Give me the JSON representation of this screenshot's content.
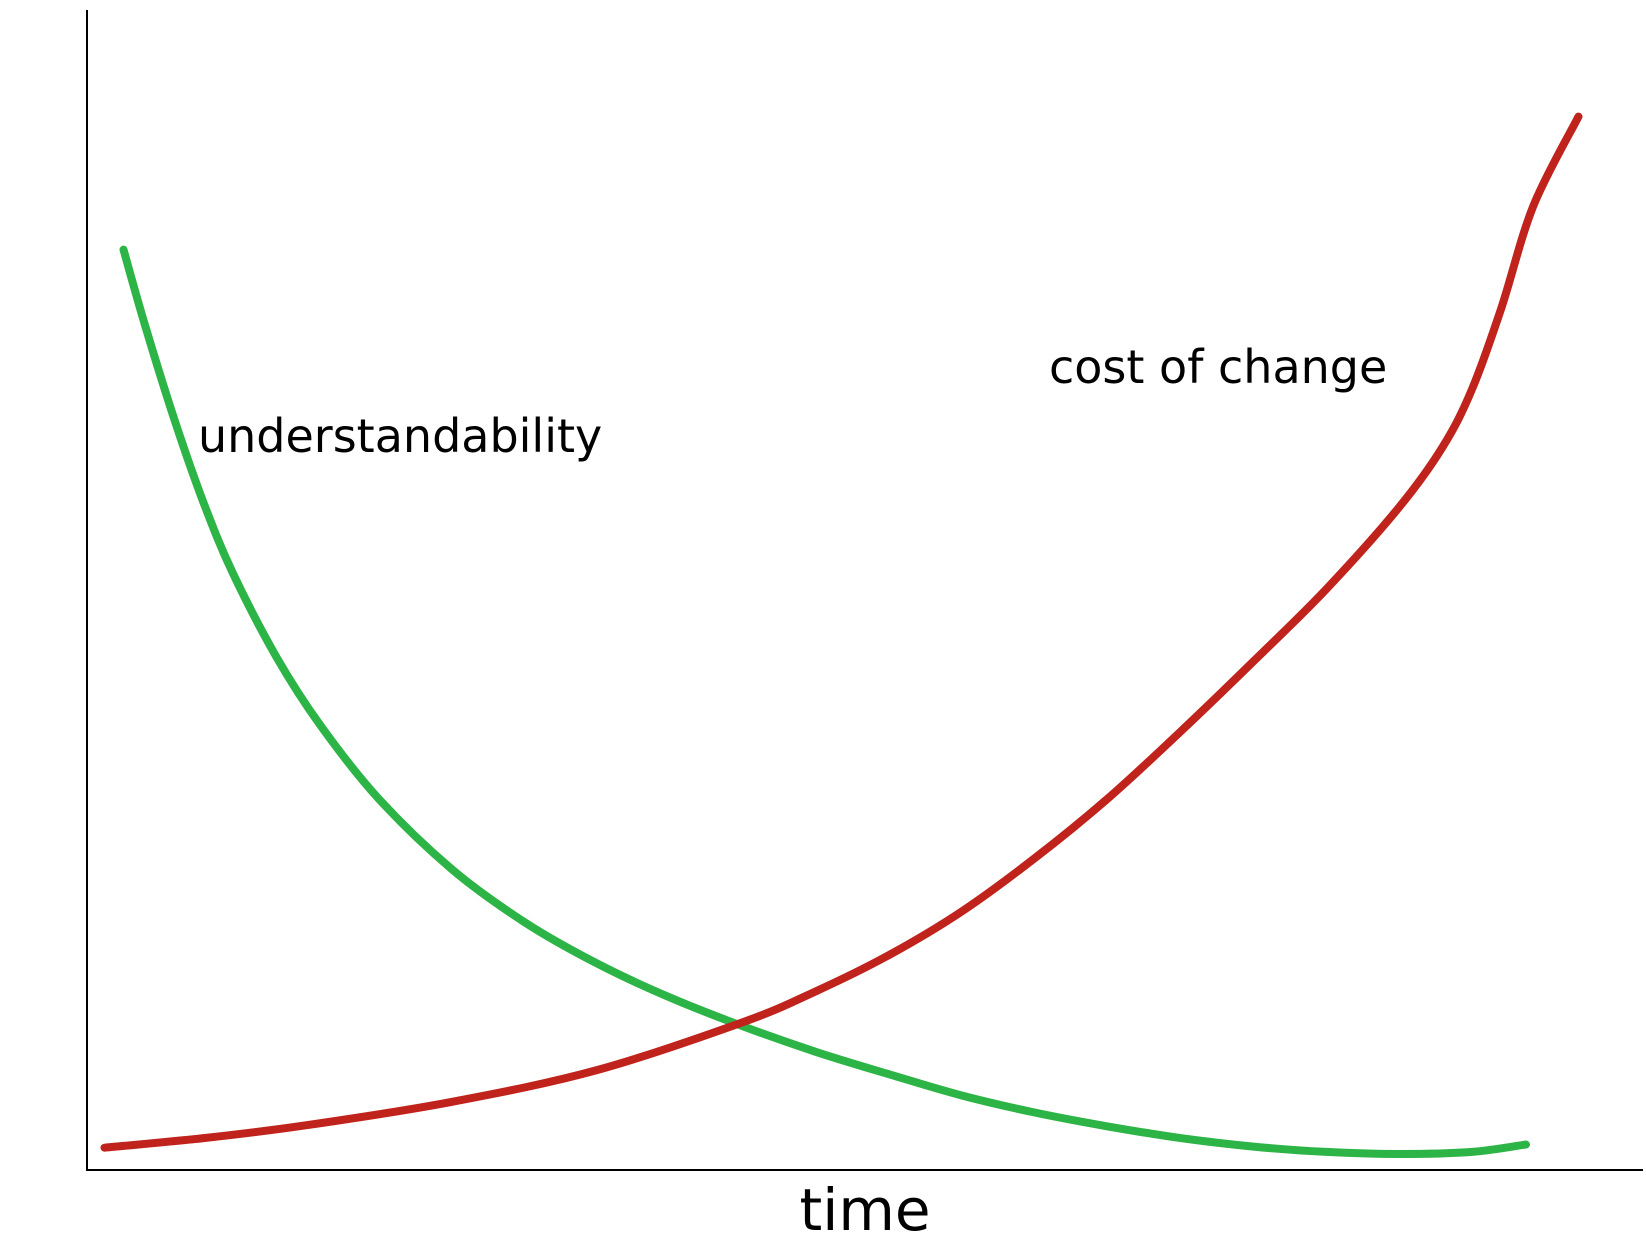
{
  "chart_data": {
    "type": "line",
    "title": "",
    "xlabel": "time",
    "ylabel": "",
    "xlim": [
      0,
      100
    ],
    "ylim": [
      0,
      100
    ],
    "grid": false,
    "legend": "none",
    "axes": {
      "left": true,
      "bottom": true,
      "ticks": false
    },
    "series": [
      {
        "name": "understandability",
        "color": "#2db446",
        "x": [
          2.5,
          4,
          6,
          8,
          10,
          13,
          16,
          20,
          25,
          30,
          35,
          40,
          45,
          50,
          55,
          60,
          65,
          70,
          75,
          80,
          85,
          90,
          95,
          98.7
        ],
        "y": [
          86.5,
          79.3,
          70.5,
          62.7,
          56.1,
          48.2,
          41.8,
          34.9,
          28.3,
          23.3,
          19.4,
          16.2,
          13.5,
          11.1,
          9.0,
          7.0,
          5.4,
          4.1,
          3.0,
          2.2,
          1.7,
          1.5,
          1.7,
          2.4
        ]
      },
      {
        "name": "cost of change",
        "color": "#c0221c",
        "x": [
          1.2,
          8,
          15,
          25,
          35,
          45,
          50,
          55,
          60,
          65,
          70,
          75,
          80,
          85,
          90,
          93,
          95,
          97,
          99.2,
          102.3
        ],
        "y": [
          2.1,
          3.0,
          4.2,
          6.4,
          9.4,
          13.9,
          16.8,
          20.2,
          24.3,
          29.3,
          34.9,
          41.2,
          47.8,
          54.6,
          62.3,
          68.0,
          73.4,
          81.0,
          90.6,
          99.0
        ]
      }
    ],
    "annotations": [
      {
        "text": "understandability",
        "series": "understandability"
      },
      {
        "text": "cost of change",
        "series": "cost of change"
      }
    ]
  }
}
